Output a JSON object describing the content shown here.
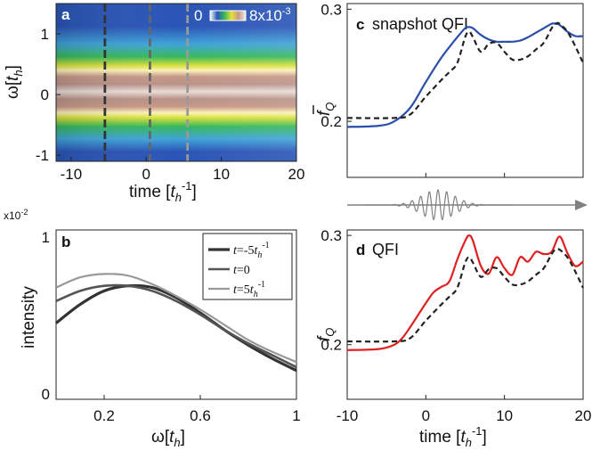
{
  "panels": {
    "a": {
      "label": "a",
      "ylabel": "ω[t_h]",
      "xlabel": "time [t_h^-1]",
      "colorbar_min": "0",
      "colorbar_max": "8x10",
      "colorbar_exp": "-3"
    },
    "b": {
      "label": "b",
      "ylabel": "intensity",
      "xlabel": "ω[t_h]",
      "yscale": "x10",
      "yscale_exp": "-2"
    },
    "c": {
      "label": "c",
      "title": "snapshot QFI",
      "ylabel": "f̄_Q"
    },
    "d": {
      "label": "d",
      "title": "QFI",
      "ylabel": "f_Q",
      "xlabel": "time [t_h^-1]"
    }
  },
  "colors": {
    "blue": "#2a4fa8",
    "red": "#e02020",
    "dashed": "#222222",
    "pulse": "#808080",
    "label_white": "#ffffff"
  },
  "chart_data": [
    {
      "id": "a",
      "type": "heatmap",
      "xlim": [
        -12,
        20
      ],
      "ylim": [
        -1.1,
        1.5
      ],
      "xticks": [
        "-10",
        "0",
        "10",
        "20"
      ],
      "yticks": [
        "1",
        "0",
        "-1"
      ],
      "colorbar_range": [
        0,
        0.008
      ],
      "band_center_omega": 0.12,
      "vertical_markers": [
        {
          "t": -5.5,
          "color": "#333333"
        },
        {
          "t": 0.5,
          "color": "#666666"
        },
        {
          "t": 5.5,
          "color": "#999999"
        }
      ]
    },
    {
      "id": "b",
      "type": "line",
      "xlim": [
        0,
        1
      ],
      "ylim": [
        0,
        1
      ],
      "xticks": [
        "0.2",
        "0.6",
        "1"
      ],
      "yticks": [
        "1",
        "0"
      ],
      "legend_position": "top-right",
      "series": [
        {
          "name": "t=-5t_h^-1",
          "name_parts": [
            "t",
            "=-5",
            "t",
            "h",
            "-1"
          ],
          "color": "#333333",
          "width": 3.2,
          "x": [
            0,
            0.1,
            0.2,
            0.3,
            0.4,
            0.5,
            0.6,
            0.7,
            0.8,
            0.9,
            1.0
          ],
          "y": [
            0.45,
            0.56,
            0.64,
            0.67,
            0.66,
            0.6,
            0.51,
            0.41,
            0.32,
            0.24,
            0.17
          ]
        },
        {
          "name": "t=0",
          "name_parts": [
            "t",
            "=0"
          ],
          "color": "#555555",
          "width": 2.6,
          "x": [
            0,
            0.1,
            0.2,
            0.3,
            0.4,
            0.5,
            0.6,
            0.7,
            0.8,
            0.9,
            1.0
          ],
          "y": [
            0.58,
            0.64,
            0.67,
            0.67,
            0.64,
            0.58,
            0.5,
            0.41,
            0.33,
            0.26,
            0.19
          ]
        },
        {
          "name": "t=5t_h^-1",
          "name_parts": [
            "t",
            "=5",
            "t",
            "h",
            "-1"
          ],
          "color": "#999999",
          "width": 2.2,
          "x": [
            0,
            0.1,
            0.2,
            0.3,
            0.4,
            0.5,
            0.6,
            0.7,
            0.8,
            0.9,
            1.0
          ],
          "y": [
            0.66,
            0.72,
            0.74,
            0.73,
            0.68,
            0.61,
            0.53,
            0.44,
            0.35,
            0.28,
            0.22
          ]
        }
      ]
    },
    {
      "id": "c",
      "type": "line",
      "xlim": [
        -10,
        20
      ],
      "ylim": [
        0.15,
        0.305
      ],
      "yticks": [
        "0.3",
        "0.2"
      ],
      "series": [
        {
          "color": "#2a4fa8",
          "dash": false,
          "x": [
            -10,
            -6,
            -4,
            -2,
            0,
            2,
            4,
            5,
            5.5,
            6,
            7,
            8,
            9,
            10,
            11,
            12,
            13,
            14,
            15,
            16,
            16.5,
            17,
            18,
            19,
            20
          ],
          "y": [
            0.195,
            0.196,
            0.2,
            0.212,
            0.235,
            0.257,
            0.275,
            0.283,
            0.284,
            0.283,
            0.277,
            0.273,
            0.271,
            0.271,
            0.271,
            0.272,
            0.275,
            0.279,
            0.283,
            0.287,
            0.287,
            0.286,
            0.28,
            0.276,
            0.276
          ]
        },
        {
          "color": "#222222",
          "dash": true,
          "x": [
            -10,
            -4,
            -2,
            0,
            2,
            3,
            4,
            5,
            5.5,
            6,
            7,
            8,
            9,
            10,
            11,
            12,
            13,
            14,
            15,
            16,
            16.5,
            17,
            18,
            19,
            20
          ],
          "y": [
            0.203,
            0.203,
            0.206,
            0.222,
            0.237,
            0.244,
            0.252,
            0.275,
            0.28,
            0.275,
            0.262,
            0.269,
            0.27,
            0.262,
            0.255,
            0.255,
            0.258,
            0.264,
            0.27,
            0.283,
            0.287,
            0.287,
            0.28,
            0.267,
            0.252
          ]
        }
      ]
    },
    {
      "id": "d",
      "type": "line",
      "xlim": [
        -10,
        20
      ],
      "ylim": [
        0.15,
        0.305
      ],
      "xticks": [
        "-10",
        "0",
        "10",
        "20"
      ],
      "yticks": [
        "0.3",
        "0.2"
      ],
      "series": [
        {
          "color": "#e02020",
          "dash": false,
          "x": [
            -10,
            -6,
            -4,
            -3,
            -2,
            0,
            1,
            2,
            3,
            4,
            5,
            5.5,
            6,
            7,
            8,
            9,
            10,
            11,
            12,
            13,
            14,
            15,
            16,
            17,
            18,
            19,
            20
          ],
          "y": [
            0.195,
            0.196,
            0.2,
            0.206,
            0.216,
            0.238,
            0.248,
            0.253,
            0.258,
            0.278,
            0.295,
            0.3,
            0.295,
            0.272,
            0.265,
            0.28,
            0.27,
            0.264,
            0.28,
            0.276,
            0.285,
            0.283,
            0.285,
            0.299,
            0.284,
            0.272,
            0.276
          ]
        },
        {
          "color": "#222222",
          "dash": true,
          "x": [
            -10,
            -4,
            -2,
            0,
            2,
            3,
            4,
            5,
            5.5,
            6,
            7,
            8,
            9,
            10,
            11,
            12,
            13,
            14,
            15,
            16,
            16.5,
            17,
            18,
            19,
            20
          ],
          "y": [
            0.203,
            0.203,
            0.206,
            0.222,
            0.237,
            0.244,
            0.252,
            0.275,
            0.28,
            0.275,
            0.262,
            0.269,
            0.27,
            0.262,
            0.255,
            0.255,
            0.258,
            0.264,
            0.27,
            0.283,
            0.287,
            0.287,
            0.28,
            0.267,
            0.252
          ]
        }
      ]
    }
  ]
}
